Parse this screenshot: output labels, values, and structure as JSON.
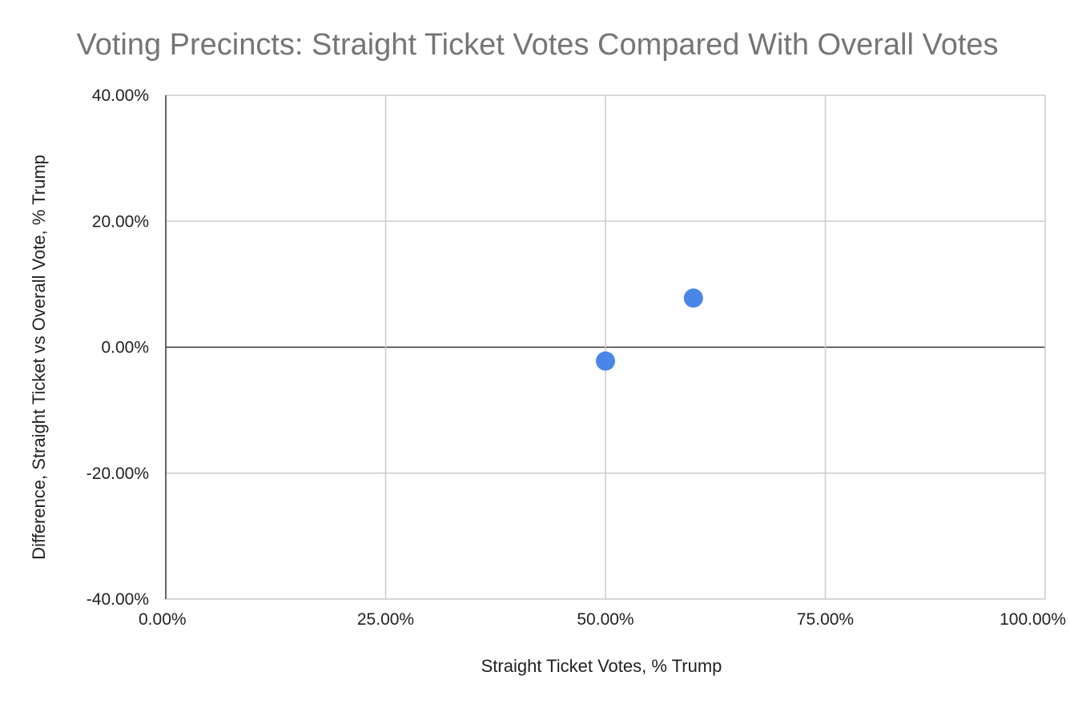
{
  "chart_data": {
    "type": "scatter",
    "title": "Voting Precincts: Straight Ticket Votes Compared With Overall Votes",
    "xlabel": "Straight Ticket Votes, % Trump",
    "ylabel": "Difference, Straight Ticket vs Overall Vote, % Trump",
    "xlim": [
      0,
      1
    ],
    "ylim": [
      -0.4,
      0.4
    ],
    "x_ticks": [
      0,
      0.25,
      0.5,
      0.75,
      1.0
    ],
    "x_tick_labels": [
      "0.00%",
      "25.00%",
      "50.00%",
      "75.00%",
      "100.00%"
    ],
    "y_ticks": [
      0.4,
      0.2,
      0.0,
      -0.2,
      -0.4
    ],
    "y_tick_labels": [
      "40.00%",
      "20.00%",
      "0.00%",
      "-20.00%",
      "-40.00%"
    ],
    "grid": true,
    "series": [
      {
        "color": "#4a86e8",
        "points": [
          {
            "x": 0.5,
            "y": -0.022
          },
          {
            "x": 0.6,
            "y": 0.078
          }
        ]
      }
    ]
  }
}
